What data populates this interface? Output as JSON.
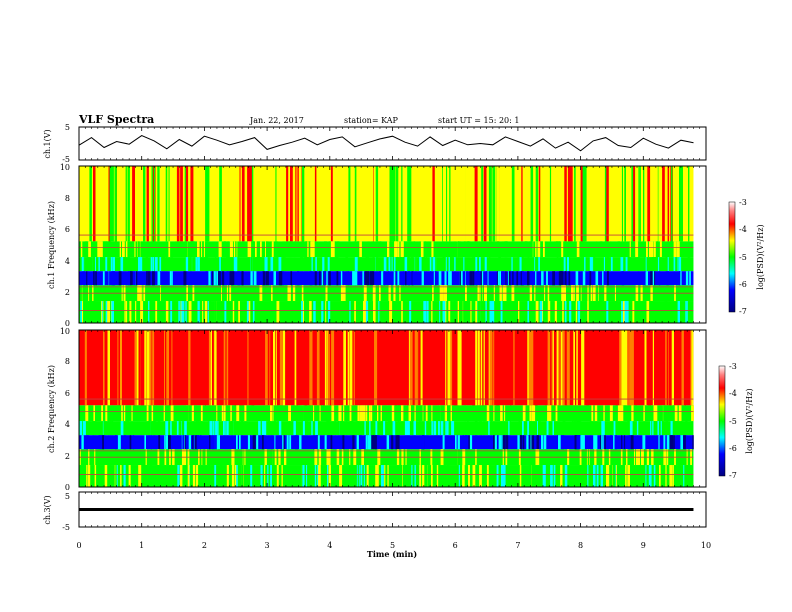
{
  "header": {
    "title": "VLF Spectra",
    "date": "Jan. 22, 2017",
    "station": "station= KAP",
    "start": "start UT =  15: 20: 1"
  },
  "chart_data": [
    {
      "type": "line",
      "ylabel": "ch.1(V)",
      "ylim": [
        -5,
        5
      ],
      "yticks": [
        "5",
        "-5"
      ],
      "xlim": [
        0,
        10
      ],
      "series": [
        {
          "values": [
            -0.5,
            1.8,
            -1.2,
            0.6,
            -0.2,
            2.4,
            0.8,
            -1.6,
            1.2,
            -0.8,
            2.2,
            1.0,
            -0.4,
            0.6,
            1.8,
            -1.8,
            -0.6,
            0.4,
            1.6,
            -0.4,
            1.2,
            2.0,
            -1.0,
            0.2,
            1.4,
            2.2,
            0.4,
            -0.8,
            2.0,
            -0.6,
            1.0,
            -0.4,
            0.0,
            -0.4,
            2.0,
            0.6,
            -0.8,
            1.4,
            -1.4,
            0.4,
            -2.2,
            0.8,
            1.8,
            -0.6,
            -1.2,
            1.6,
            -0.2,
            -1.4,
            1.0,
            0.2
          ]
        }
      ]
    },
    {
      "type": "heatmap",
      "ylabel": "ch.1 Frequency (kHz)",
      "ylim": [
        0,
        10
      ],
      "yticks": [
        "0",
        "2",
        "4",
        "6",
        "8",
        "10"
      ],
      "xlim": [
        0,
        10
      ],
      "colorbar": {
        "label": "log(PSD)(V²/Hz)",
        "range": [
          -7,
          -3
        ],
        "ticks": [
          "-3",
          "-4",
          "-5",
          "-6",
          "-7"
        ]
      }
    },
    {
      "type": "heatmap",
      "ylabel": "ch.2 Frequency (kHz)",
      "ylim": [
        0,
        10
      ],
      "yticks": [
        "0",
        "2",
        "4",
        "6",
        "8",
        "10"
      ],
      "xlim": [
        0,
        10
      ],
      "colorbar": {
        "label": "log(PSD)(V²/Hz)",
        "range": [
          -7,
          -3
        ],
        "ticks": [
          "-3",
          "-4",
          "-5",
          "-6",
          "-7"
        ]
      }
    },
    {
      "type": "line",
      "ylabel": "ch.3(V)",
      "ylim": [
        -5,
        5
      ],
      "yticks": [
        "5",
        "-5"
      ],
      "xlim": [
        0,
        10
      ],
      "series": [
        {
          "values": [
            0.0,
            0.0
          ]
        }
      ]
    }
  ],
  "xaxis": {
    "label": "Time (min)",
    "ticks": [
      "0",
      "1",
      "2",
      "3",
      "4",
      "5",
      "6",
      "7",
      "8",
      "9",
      "10"
    ]
  },
  "colors": {
    "bar_red": "#ff0000",
    "bar_yellow": "#ffff00",
    "bar_green": "#00ff00",
    "bar_cyan": "#00ffff",
    "bar_blue": "#0000ff",
    "bar_navy": "#000080"
  }
}
